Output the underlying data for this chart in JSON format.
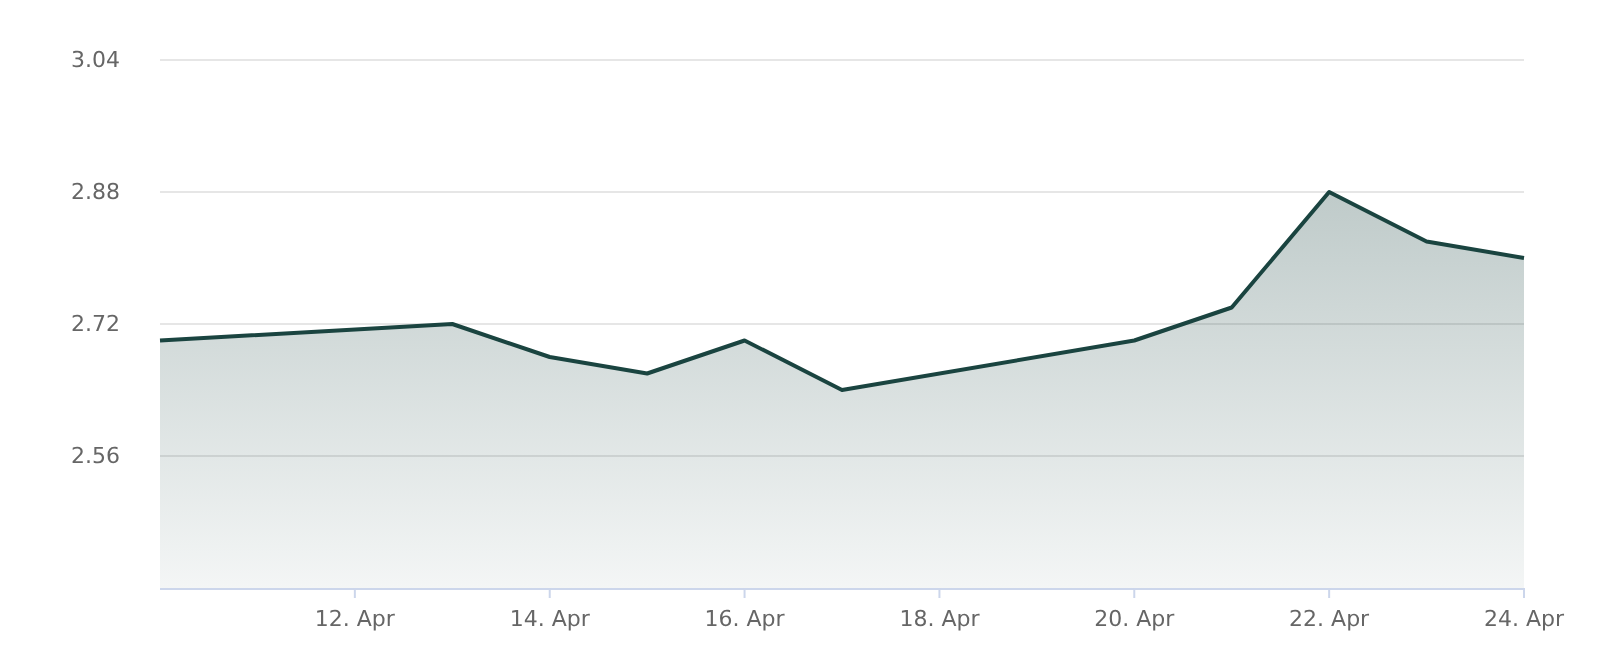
{
  "chart_data": {
    "type": "area",
    "x": [
      "--04-10",
      "--04-13",
      "--04-14",
      "--04-15",
      "--04-16",
      "--04-17",
      "--04-20",
      "--04-21",
      "--04-22",
      "--04-23",
      "--04-24"
    ],
    "series": [
      {
        "color": "#1a4440",
        "values": [
          2.7,
          2.72,
          2.68,
          2.66,
          2.7,
          2.64,
          2.7,
          2.74,
          2.88,
          2.82,
          2.8
        ]
      }
    ],
    "xlim": [
      "--04-10",
      "--04-24"
    ],
    "xticks": [
      {
        "value": "--04-12",
        "label": "12. Apr"
      },
      {
        "value": "--04-14",
        "label": "14. Apr"
      },
      {
        "value": "--04-16",
        "label": "16. Apr"
      },
      {
        "value": "--04-18",
        "label": "18. Apr"
      },
      {
        "value": "--04-20",
        "label": "20. Apr"
      },
      {
        "value": "--04-22",
        "label": "22. Apr"
      },
      {
        "value": "--04-24",
        "label": "24. Apr"
      }
    ],
    "ylim": [
      2.4,
      3.04
    ],
    "yticks": [
      {
        "value": 2.56,
        "label": "2.56"
      },
      {
        "value": 2.72,
        "label": "2.72"
      },
      {
        "value": 2.88,
        "label": "2.88"
      },
      {
        "value": 3.04,
        "label": "3.04"
      }
    ],
    "grid": "y"
  }
}
